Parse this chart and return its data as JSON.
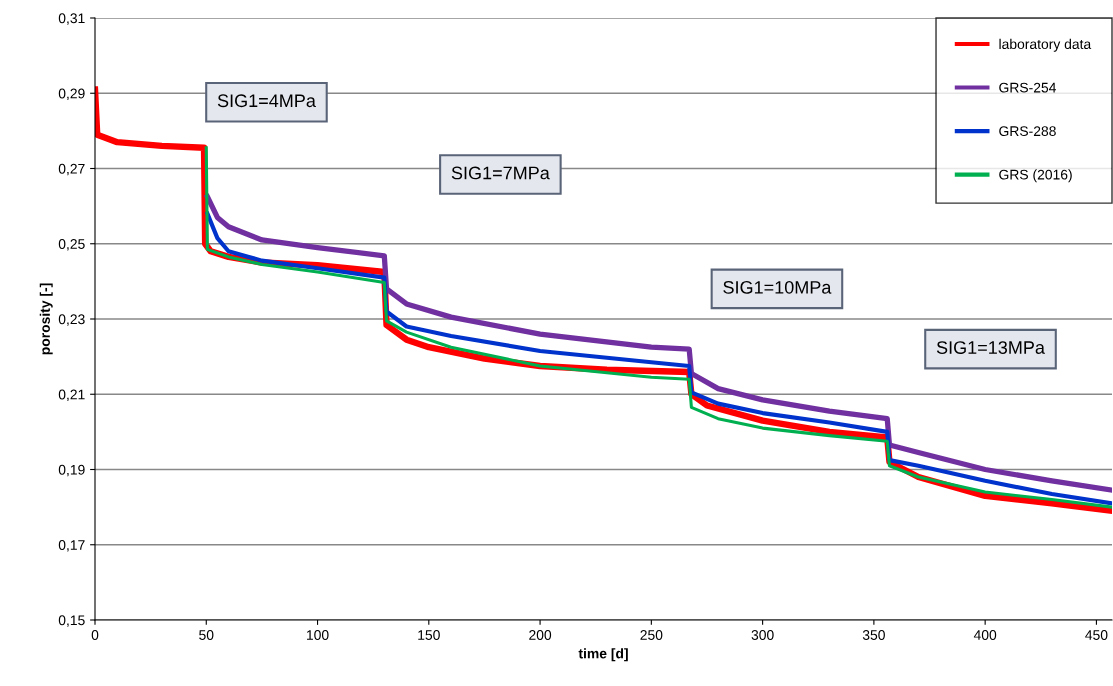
{
  "chart_data": {
    "type": "line",
    "xlabel": "time [d]",
    "ylabel": "porosity [-]",
    "xlim": [
      0,
      457
    ],
    "xticks": [
      0,
      50,
      100,
      150,
      200,
      250,
      300,
      350,
      400,
      450
    ],
    "ylim": [
      0.15,
      0.31
    ],
    "yticks": [
      {
        "value": 0.15,
        "label": "0,15"
      },
      {
        "value": 0.17,
        "label": "0,17"
      },
      {
        "value": 0.19,
        "label": "0,19"
      },
      {
        "value": 0.21,
        "label": "0,21"
      },
      {
        "value": 0.23,
        "label": "0,23"
      },
      {
        "value": 0.25,
        "label": "0,25"
      },
      {
        "value": 0.27,
        "label": "0,27"
      },
      {
        "value": 0.29,
        "label": "0,29"
      },
      {
        "value": 0.31,
        "label": "0,31"
      }
    ],
    "grid": "y",
    "legend": "top right",
    "marker": "none",
    "line_style": "solid",
    "annotations": [
      "SIG1=4MPa",
      "SIG1=7MPa",
      "SIG1=10MPa",
      "SIG1=13MPa"
    ],
    "series": [
      {
        "name": "laboratory data",
        "color": "#ff0000",
        "x": [
          0,
          1,
          10,
          30,
          49,
          49.5,
          52,
          60,
          75,
          100,
          130,
          131,
          140,
          150,
          175,
          200,
          230,
          267,
          268,
          275,
          300,
          330,
          356,
          357,
          370,
          400,
          430,
          457
        ],
        "values": [
          0.291,
          0.279,
          0.277,
          0.276,
          0.2755,
          0.25,
          0.248,
          0.2465,
          0.245,
          0.2443,
          0.2425,
          0.2284,
          0.2245,
          0.2225,
          0.2195,
          0.2175,
          0.2165,
          0.2159,
          0.21,
          0.207,
          0.203,
          0.2,
          0.1985,
          0.192,
          0.188,
          0.183,
          0.181,
          0.179
        ]
      },
      {
        "name": "GRS-254",
        "color": "#7030a0",
        "x": [
          50.5,
          55,
          60,
          75,
          100,
          130,
          131,
          140,
          160,
          200,
          250,
          267,
          268,
          280,
          300,
          330,
          356,
          357,
          370,
          400,
          430,
          457
        ],
        "values": [
          0.2625,
          0.257,
          0.2545,
          0.251,
          0.249,
          0.2468,
          0.238,
          0.234,
          0.2305,
          0.226,
          0.2225,
          0.222,
          0.2155,
          0.2115,
          0.2085,
          0.2055,
          0.2035,
          0.1965,
          0.1945,
          0.19,
          0.187,
          0.1845
        ]
      },
      {
        "name": "GRS-288",
        "color": "#0033cc",
        "x": [
          50.5,
          55,
          60,
          75,
          100,
          130,
          131,
          140,
          160,
          200,
          250,
          267,
          268,
          280,
          300,
          330,
          356,
          357,
          370,
          400,
          430,
          457
        ],
        "values": [
          0.258,
          0.2515,
          0.248,
          0.2455,
          0.2435,
          0.241,
          0.232,
          0.228,
          0.2255,
          0.2215,
          0.2185,
          0.2175,
          0.2105,
          0.2075,
          0.205,
          0.2025,
          0.2,
          0.1925,
          0.191,
          0.187,
          0.1835,
          0.181
        ]
      },
      {
        "name": "GRS (2016)",
        "color": "#00b050",
        "x": [
          50,
          50.5,
          60,
          75,
          100,
          130,
          131,
          140,
          160,
          200,
          250,
          267,
          268,
          280,
          300,
          330,
          356,
          357,
          370,
          400,
          430,
          457
        ],
        "values": [
          0.2755,
          0.2485,
          0.2465,
          0.2445,
          0.2425,
          0.2397,
          0.2295,
          0.2265,
          0.2225,
          0.2175,
          0.2145,
          0.214,
          0.2065,
          0.2035,
          0.201,
          0.199,
          0.1975,
          0.191,
          0.188,
          0.184,
          0.182,
          0.18
        ]
      }
    ]
  }
}
